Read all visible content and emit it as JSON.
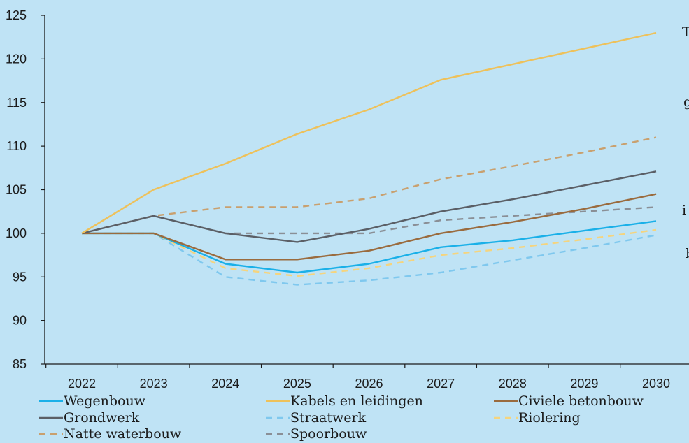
{
  "chart_data": {
    "type": "line",
    "x": [
      "2022",
      "2023",
      "2024",
      "2025",
      "2026",
      "2027",
      "2028",
      "2029",
      "2030"
    ],
    "ylim": [
      85,
      125
    ],
    "yticks": [
      85,
      90,
      95,
      100,
      105,
      110,
      115,
      120,
      125
    ],
    "grid": false,
    "legend_position": "bottom",
    "series": [
      {
        "name": "Wegenbouw",
        "color": "#1ab0e8",
        "dash": false,
        "values": [
          100,
          100,
          96.5,
          95.5,
          96.5,
          98.4,
          99.2,
          100.3,
          101.4
        ]
      },
      {
        "name": "Kabels en leidingen",
        "color": "#eec15a",
        "dash": false,
        "values": [
          100,
          105,
          108,
          111.4,
          114.2,
          117.6,
          119.4,
          121.2,
          123
        ]
      },
      {
        "name": "Civiele betonbouw",
        "color": "#9a6b3e",
        "dash": false,
        "values": [
          100,
          100,
          97,
          97,
          98,
          100,
          101.3,
          102.8,
          104.5
        ]
      },
      {
        "name": "Grondwerk",
        "color": "#5b5f66",
        "dash": false,
        "values": [
          100,
          102,
          100,
          99,
          100.5,
          102.5,
          103.9,
          105.5,
          107.1
        ]
      },
      {
        "name": "Straatwerk",
        "color": "#7fc8ee",
        "dash": true,
        "values": [
          100,
          100,
          95,
          94.1,
          94.6,
          95.5,
          96.9,
          98.3,
          99.8
        ]
      },
      {
        "name": "Riolering",
        "color": "#f5d47e",
        "dash": true,
        "values": [
          100,
          100,
          96,
          95.1,
          96,
          97.5,
          98.3,
          99.3,
          100.4
        ]
      },
      {
        "name": "Natte waterbouw",
        "color": "#c9a06e",
        "dash": true,
        "values": [
          100,
          102,
          103,
          103,
          104,
          106.2,
          107.7,
          109.3,
          111
        ]
      },
      {
        "name": "Spoorbouw",
        "color": "#8a8f96",
        "dash": true,
        "values": [
          100,
          102,
          100,
          100,
          100,
          101.5,
          102,
          102.5,
          103
        ]
      }
    ]
  },
  "side_text_fragments": [
    "T",
    "g",
    "i",
    "b"
  ]
}
